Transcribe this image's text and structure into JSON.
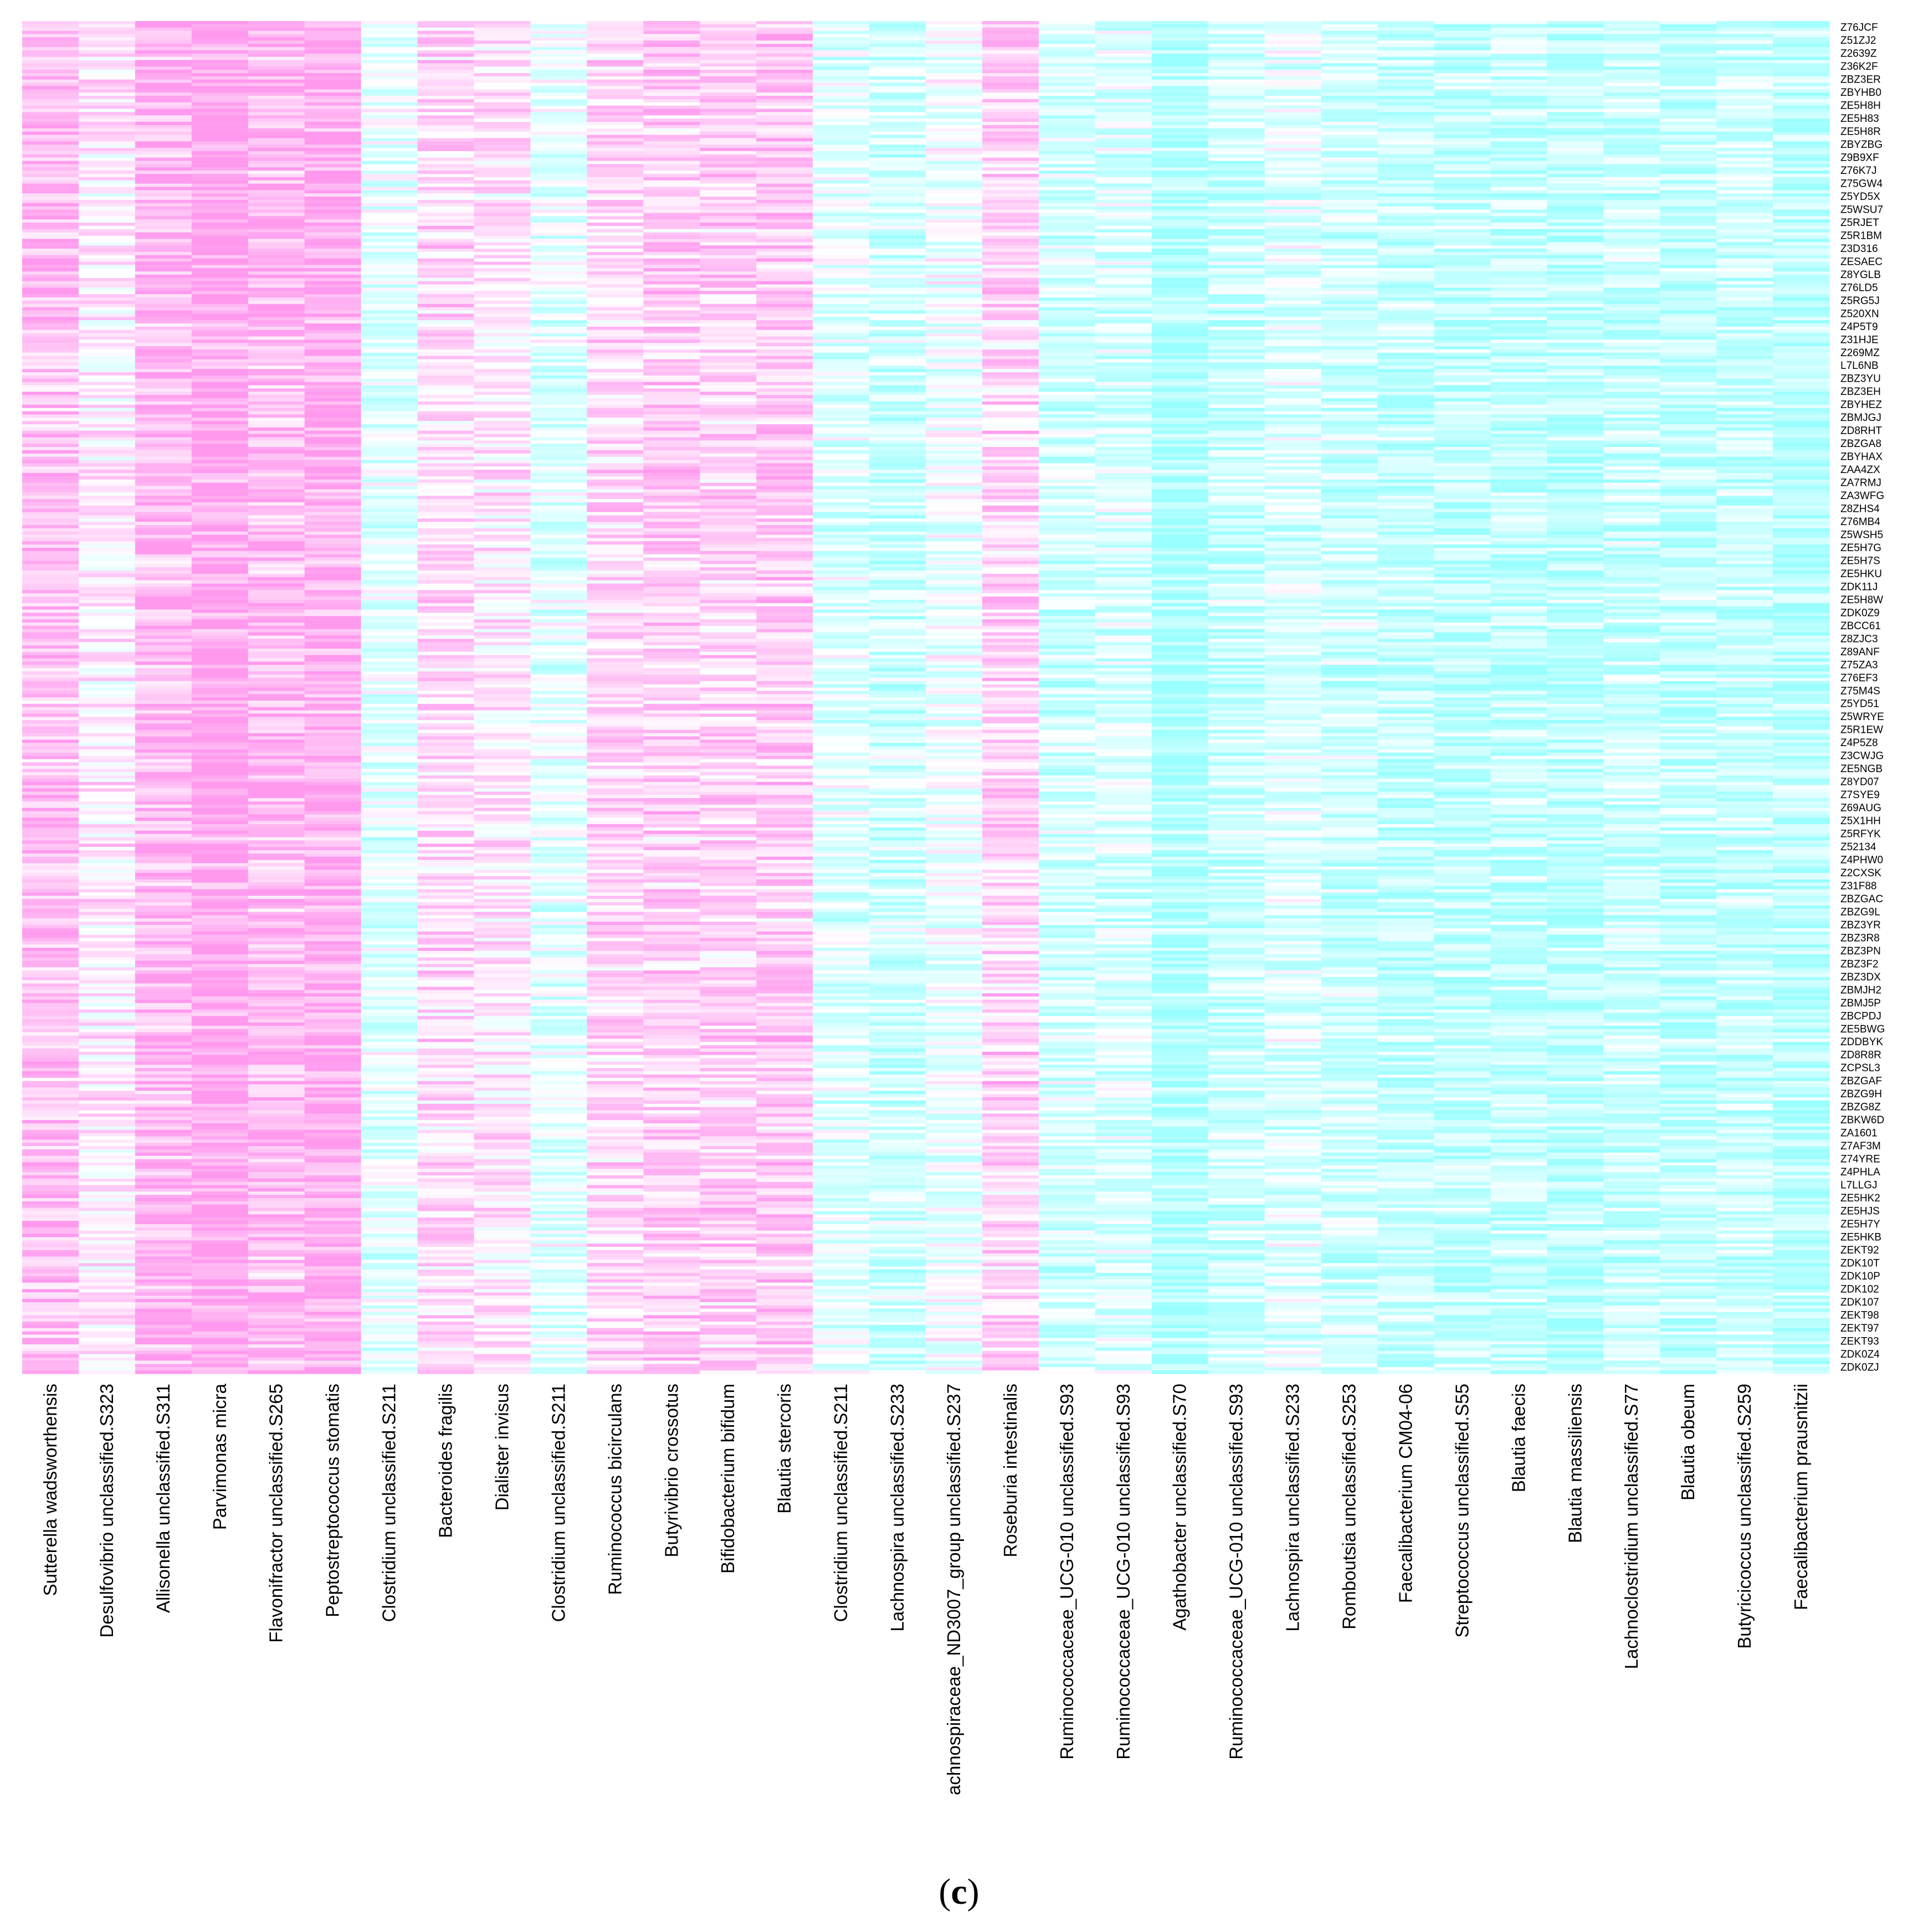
{
  "panel_label": {
    "open": "(",
    "letter": "c",
    "close": ")"
  },
  "chart_data": {
    "type": "heatmap",
    "title": "",
    "xlabel": "",
    "ylabel": "",
    "colors": {
      "high": "#ff99ee",
      "mid": "#ffffff",
      "low": "#99ffff"
    },
    "columns": [
      "Sutterella wadsworthensis",
      "Desulfovibrio unclassified.S323",
      "Allisonella unclassified.S311",
      "Parvimonas micra",
      "Flavonifractor unclassified.S265",
      "Peptostreptococcus stomatis",
      "Clostridium unclassified.S211",
      "Bacteroides fragilis",
      "Dialister invisus",
      "Clostridium unclassified.S211",
      "Ruminococcus bicirculans",
      "Butyrivibrio crossotus",
      "Bifidobacterium bifidum",
      "Blautia stercoris",
      "Clostridium unclassified.S211",
      "Lachnospira unclassified.S233",
      "achnospiraceae_ND3007_group unclassified.S237",
      "Roseburia intestinalis",
      "Ruminococcaceae_UCG-010 unclassified.S93",
      "Ruminococcaceae_UCG-010 unclassified.S93",
      "Agathobacter unclassified.S70",
      "Ruminococcaceae_UCG-010 unclassified.S93",
      "Lachnospira unclassified.S233",
      "Romboutsia unclassified.S253",
      "Faecalibacterium CM04-06",
      "Streptococcus unclassified.S55",
      "Blautia faecis",
      "Blautia massiliensis",
      "Lachnoclostridium unclassified.S77",
      "Blautia obeum",
      "Butyricicoccus unclassified.S259",
      "Faecalibacterium prausnitzii"
    ],
    "column_means": [
      0.62,
      0.2,
      0.68,
      0.9,
      0.65,
      0.82,
      -0.25,
      0.35,
      0.22,
      -0.25,
      0.35,
      0.45,
      0.45,
      0.5,
      -0.3,
      -0.45,
      -0.15,
      0.4,
      -0.4,
      -0.35,
      -0.75,
      -0.5,
      -0.3,
      -0.45,
      -0.55,
      -0.6,
      -0.55,
      -0.65,
      -0.5,
      -0.55,
      -0.5,
      -0.65
    ],
    "rows": [
      "Z76JCF",
      "Z51ZJ2",
      "Z2639Z",
      "Z36K2F",
      "ZBZ3ER",
      "ZBYHB0",
      "ZE5H8H",
      "ZE5H83",
      "ZE5H8R",
      "ZBYZBG",
      "Z9B9XF",
      "Z76K7J",
      "Z75GW4",
      "Z5YD5X",
      "Z5WSU7",
      "Z5RJET",
      "Z5R1BM",
      "Z3D316",
      "ZESAEC",
      "Z8YGLB",
      "Z76LD5",
      "Z5RG5J",
      "Z520XN",
      "Z4P5T9",
      "Z31HJE",
      "Z269MZ",
      "L7L6NB",
      "ZBZ3YU",
      "ZBZ3EH",
      "ZBYHEZ",
      "ZBMJGJ",
      "ZD8RHT",
      "ZBZGA8",
      "ZBYHAX",
      "ZAA4ZX",
      "ZA7RMJ",
      "ZA3WFG",
      "Z8ZHS4",
      "Z76MB4",
      "Z5WSH5",
      "ZE5H7G",
      "ZE5H7S",
      "ZE5HKU",
      "ZDK11J",
      "ZE5H8W",
      "ZDK0Z9",
      "ZBCC61",
      "Z8ZJC3",
      "Z89ANF",
      "Z75ZA3",
      "Z76EF3",
      "Z75M4S",
      "Z5YD51",
      "Z5WRYE",
      "Z5R1EW",
      "Z4P5Z8",
      "Z3CWJG",
      "ZE5NGB",
      "Z8YD07",
      "Z7SYE9",
      "Z69AUG",
      "Z5X1HH",
      "Z5RFYK",
      "Z52134",
      "Z4PHW0",
      "Z2CXSK",
      "Z31F88",
      "ZBZGAC",
      "ZBZG9L",
      "ZBZ3YR",
      "ZBZ3R8",
      "ZBZ3PN",
      "ZBZ3F2",
      "ZBZ3DX",
      "ZBMJH2",
      "ZBMJ5P",
      "ZBCPDJ",
      "ZE5BWG",
      "ZDDBYK",
      "ZD8R8R",
      "ZCPSL3",
      "ZBZGAF",
      "ZBZG9H",
      "ZBZG8Z",
      "ZBKW6D",
      "ZA1601",
      "Z7AF3M",
      "Z74YRE",
      "Z4PHLA",
      "L7LLGJ",
      "ZE5HK2",
      "ZE5HJS",
      "ZE5H7Y",
      "ZE5HKB",
      "ZEKT92",
      "ZDK10T",
      "ZDK10P",
      "ZDK102",
      "ZDK107",
      "ZEKT98",
      "ZEKT97",
      "ZEKT93",
      "ZDK0Z4",
      "ZDK0ZJ"
    ],
    "cells_per_row_label": 4,
    "legend": "none",
    "grid": false
  }
}
